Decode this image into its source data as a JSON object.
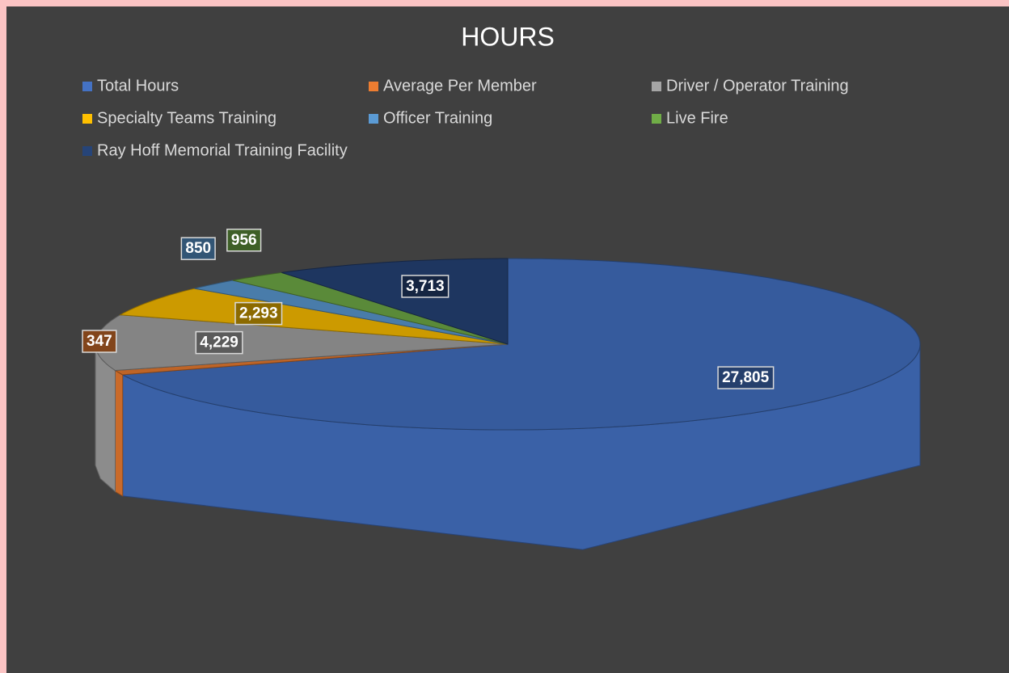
{
  "chart_data": {
    "type": "pie3d",
    "title": "HOURS",
    "categories": [
      "Total Hours",
      "Average Per Member",
      "Driver / Operator Training",
      "Specialty Teams Training",
      "Officer Training",
      "Live Fire",
      "Ray Hoff Memorial Training Facility"
    ],
    "values": [
      27805,
      347,
      4229,
      2293,
      850,
      956,
      3713
    ],
    "value_labels": [
      "27,805",
      "347",
      "4,229",
      "2,293",
      "850",
      "956",
      "3,713"
    ],
    "colors": [
      "#4472c4",
      "#ed7d31",
      "#a5a5a5",
      "#ffc000",
      "#5b9bd5",
      "#70ad47",
      "#264478"
    ],
    "legend": "top"
  }
}
